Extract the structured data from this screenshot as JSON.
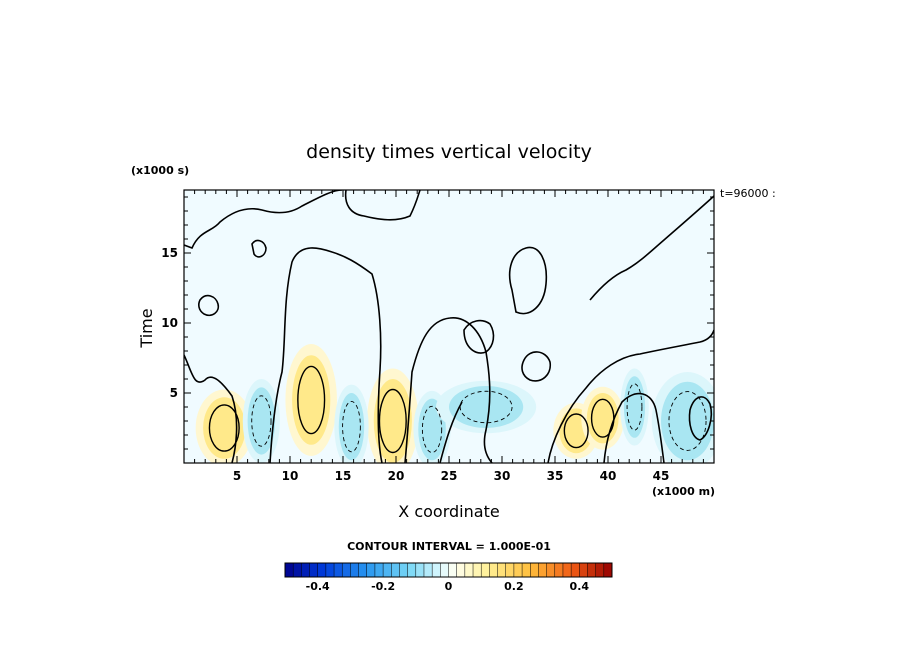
{
  "chart_data": {
    "type": "heatmap",
    "title": "density times vertical velocity",
    "xlabel": "X coordinate",
    "ylabel": "Time",
    "x_unit_label": "(x1000 m)",
    "y_unit_label": "(x1000 s)",
    "time_annotation": "t=96000 :",
    "contour_interval_label": "CONTOUR INTERVAL = 1.000E-01",
    "xlim": [
      0,
      50
    ],
    "ylim": [
      0,
      19.5
    ],
    "xticks": [
      5,
      10,
      15,
      20,
      25,
      30,
      35,
      40,
      45
    ],
    "yticks": [
      5,
      10,
      15
    ],
    "colorbar": {
      "range": [
        -0.5,
        0.5
      ],
      "n_bins": 40,
      "tick_values": [
        -0.4,
        -0.2,
        0,
        0.2,
        0.4
      ],
      "tick_labels": [
        "-0.4",
        "-0.2",
        "0",
        "0.2",
        "0.4"
      ]
    },
    "features": [
      {
        "kind": "positive",
        "x": 3.8,
        "y": 2.5,
        "rx": 2.0,
        "ry": 2.2,
        "value": 0.25
      },
      {
        "kind": "positive",
        "x": 12.0,
        "y": 4.5,
        "rx": 1.8,
        "ry": 3.2,
        "value": 0.15
      },
      {
        "kind": "positive",
        "x": 19.7,
        "y": 3.0,
        "rx": 1.8,
        "ry": 3.0,
        "value": 0.25
      },
      {
        "kind": "positive",
        "x": 37.0,
        "y": 2.3,
        "rx": 1.6,
        "ry": 1.6,
        "value": 0.15
      },
      {
        "kind": "positive",
        "x": 39.5,
        "y": 3.2,
        "rx": 1.5,
        "ry": 1.8,
        "value": 0.18
      },
      {
        "kind": "negative",
        "x": 7.3,
        "y": 3.0,
        "rx": 1.3,
        "ry": 2.4,
        "value": -0.2
      },
      {
        "kind": "negative",
        "x": 15.8,
        "y": 2.6,
        "rx": 1.2,
        "ry": 2.4,
        "value": -0.15
      },
      {
        "kind": "negative",
        "x": 23.4,
        "y": 2.4,
        "rx": 1.3,
        "ry": 2.2,
        "value": -0.15
      },
      {
        "kind": "negative",
        "x": 28.5,
        "y": 4.0,
        "rx": 3.5,
        "ry": 1.5,
        "value": -0.08
      },
      {
        "kind": "negative",
        "x": 42.5,
        "y": 4.0,
        "rx": 1.0,
        "ry": 2.2,
        "value": -0.15
      },
      {
        "kind": "negative",
        "x": 47.5,
        "y": 3.0,
        "rx": 2.5,
        "ry": 2.8,
        "value": -0.12
      }
    ]
  },
  "colors": {
    "background_field": "#f0fbff",
    "positive_light": "#fff7d0",
    "positive_mid": "#ffe98a",
    "negative_light": "#dcf6fb",
    "negative_mid": "#a9e6f2",
    "contour": "#000000"
  }
}
